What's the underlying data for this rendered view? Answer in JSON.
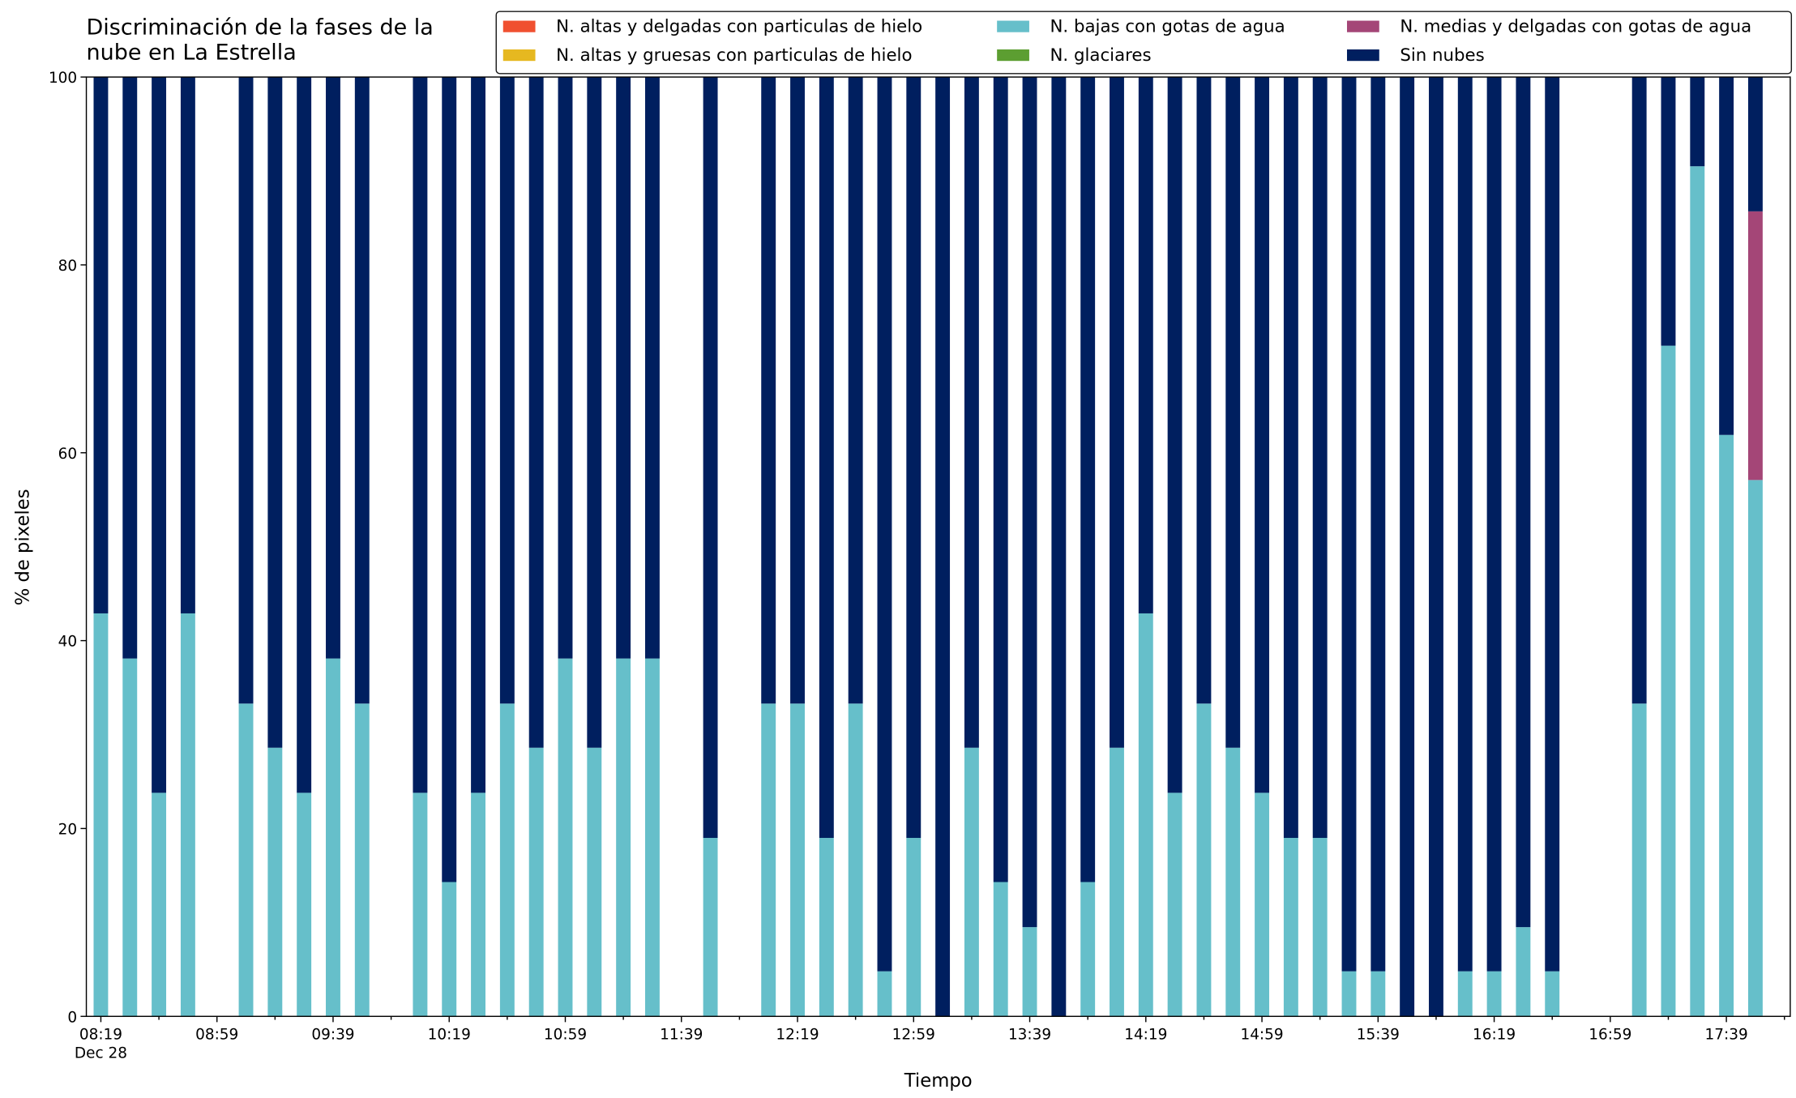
{
  "chart_data": {
    "type": "stacked_bar",
    "title": "Discriminación de la fases de la\nnube en La Estrella",
    "xlabel": "Tiempo",
    "ylabel": "% de pixeles",
    "x": [
      "08:19",
      "08:29",
      "08:39",
      "08:49",
      "09:09",
      "09:19",
      "09:29",
      "09:39",
      "09:49",
      "10:09",
      "10:19",
      "10:29",
      "10:39",
      "10:49",
      "10:59",
      "11:09",
      "11:19",
      "11:29",
      "11:49",
      "12:09",
      "12:19",
      "12:29",
      "12:39",
      "12:49",
      "12:59",
      "13:09",
      "13:19",
      "13:29",
      "13:39",
      "13:49",
      "13:59",
      "14:09",
      "14:19",
      "14:29",
      "14:39",
      "14:49",
      "14:59",
      "15:09",
      "15:19",
      "15:29",
      "15:39",
      "15:49",
      "15:59",
      "16:09",
      "16:19",
      "16:29",
      "16:39",
      "17:09",
      "17:19",
      "17:29",
      "17:39",
      "17:49"
    ],
    "series": [
      {
        "name": "N. altas y delgadas con particulas de hielo",
        "color": "#f05030",
        "values": [
          0,
          0,
          0,
          0,
          0,
          0,
          0,
          0,
          0,
          0,
          0,
          0,
          0,
          0,
          0,
          0,
          0,
          0,
          0,
          0,
          0,
          0,
          0,
          0,
          0,
          0,
          0,
          0,
          0,
          0,
          0,
          0,
          0,
          0,
          0,
          0,
          0,
          0,
          0,
          0,
          0,
          0,
          0,
          0,
          0,
          0,
          0,
          0,
          0,
          0,
          0,
          0
        ]
      },
      {
        "name": "N. altas y gruesas con particulas de hielo",
        "color": "#e6b820",
        "values": [
          0,
          0,
          0,
          0,
          0,
          0,
          0,
          0,
          0,
          0,
          0,
          0,
          0,
          0,
          0,
          0,
          0,
          0,
          0,
          0,
          0,
          0,
          0,
          0,
          0,
          0,
          0,
          0,
          0,
          0,
          0,
          0,
          0,
          0,
          0,
          0,
          0,
          0,
          0,
          0,
          0,
          0,
          0,
          0,
          0,
          0,
          0,
          0,
          0,
          0,
          0,
          0
        ]
      },
      {
        "name": "N. bajas con gotas de agua",
        "color": "#66bfca",
        "values": [
          42.9,
          38.1,
          23.8,
          42.9,
          33.3,
          28.6,
          23.8,
          38.1,
          33.3,
          23.8,
          14.3,
          23.8,
          33.3,
          28.6,
          38.1,
          28.6,
          38.1,
          38.1,
          19.0,
          33.3,
          33.3,
          19.0,
          33.3,
          4.8,
          19.0,
          0,
          28.6,
          14.3,
          9.5,
          0,
          14.3,
          28.6,
          42.9,
          23.8,
          33.3,
          28.6,
          23.8,
          19.0,
          19.0,
          4.8,
          4.8,
          0,
          0,
          4.8,
          4.8,
          9.5,
          4.8,
          33.3,
          71.4,
          90.5,
          61.9,
          57.1
        ]
      },
      {
        "name": "N. glaciares",
        "color": "#5c9e31",
        "values": [
          0,
          0,
          0,
          0,
          0,
          0,
          0,
          0,
          0,
          0,
          0,
          0,
          0,
          0,
          0,
          0,
          0,
          0,
          0,
          0,
          0,
          0,
          0,
          0,
          0,
          0,
          0,
          0,
          0,
          0,
          0,
          0,
          0,
          0,
          0,
          0,
          0,
          0,
          0,
          0,
          0,
          0,
          0,
          0,
          0,
          0,
          0,
          0,
          0,
          0,
          0,
          0
        ]
      },
      {
        "name": "N. medias y delgadas con gotas de agua",
        "color": "#a44677",
        "values": [
          0,
          0,
          0,
          0,
          0,
          0,
          0,
          0,
          0,
          0,
          0,
          0,
          0,
          0,
          0,
          0,
          0,
          0,
          0,
          0,
          0,
          0,
          0,
          0,
          0,
          0,
          0,
          0,
          0,
          0,
          0,
          0,
          0,
          0,
          0,
          0,
          0,
          0,
          0,
          0,
          0,
          0,
          0,
          0,
          0,
          0,
          0,
          0,
          0,
          0,
          0,
          28.6
        ]
      },
      {
        "name": "Sin nubes",
        "color": "#001f5f",
        "values": [
          57.1,
          61.9,
          76.2,
          57.1,
          66.7,
          71.4,
          76.2,
          61.9,
          66.7,
          76.2,
          85.7,
          76.2,
          66.7,
          71.4,
          61.9,
          71.4,
          61.9,
          61.9,
          81.0,
          66.7,
          66.7,
          81.0,
          66.7,
          95.2,
          81.0,
          100,
          71.4,
          85.7,
          90.5,
          100,
          85.7,
          71.4,
          57.1,
          76.2,
          66.7,
          71.4,
          76.2,
          81.0,
          81.0,
          95.2,
          95.2,
          100,
          100,
          95.2,
          95.2,
          90.5,
          95.2,
          66.7,
          28.6,
          9.5,
          38.1,
          14.3
        ]
      }
    ],
    "xlim": [
      "08:14",
      "18:01"
    ],
    "xticks": [
      {
        "value": "08:19",
        "label": "08:19\nDec 28"
      },
      "08:59",
      "09:39",
      "10:19",
      "10:59",
      "11:39",
      "12:19",
      "12:59",
      "13:39",
      "14:19",
      "14:59",
      "15:39",
      "16:19",
      "16:59",
      "17:39"
    ],
    "xminorticks": [
      "08:39",
      "09:19",
      "09:59",
      "10:39",
      "11:19",
      "11:59",
      "12:39",
      "13:19",
      "13:59",
      "14:39",
      "15:19",
      "15:59",
      "16:39",
      "17:19",
      "17:59"
    ],
    "ylim": [
      0,
      100
    ],
    "yticks": [
      0,
      20,
      40,
      60,
      80,
      100
    ],
    "legend": "upper right"
  }
}
